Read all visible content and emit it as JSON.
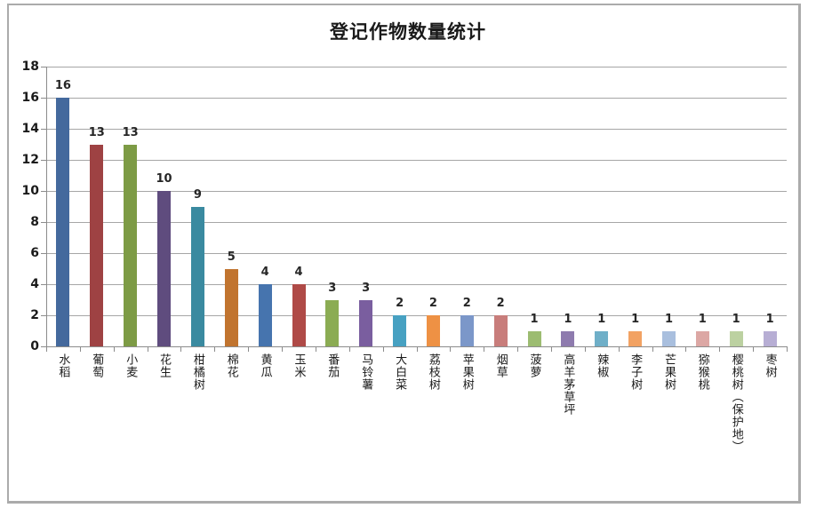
{
  "chart_data": {
    "type": "bar",
    "title": "登记作物数量统计",
    "categories": [
      "水稻",
      "葡萄",
      "小麦",
      "花生",
      "柑橘树",
      "棉花",
      "黄瓜",
      "玉米",
      "番茄",
      "马铃薯",
      "大白菜",
      "荔枝树",
      "苹果树",
      "烟草",
      "菠萝",
      "高羊茅草坪",
      "辣椒",
      "李子树",
      "芒果树",
      "猕猴桃",
      "樱桃树（保护地）",
      "枣树"
    ],
    "values": [
      16,
      13,
      13,
      10,
      9,
      5,
      4,
      4,
      3,
      3,
      2,
      2,
      2,
      2,
      1,
      1,
      1,
      1,
      1,
      1,
      1,
      1
    ],
    "bar_colors": [
      "#44699D",
      "#9E4243",
      "#7D9B45",
      "#5F4C7E",
      "#3A8AA0",
      "#C1742F",
      "#4674AE",
      "#AF4A47",
      "#8BAC53",
      "#7A5E9F",
      "#47A1C2",
      "#EE9144",
      "#7B97C9",
      "#C87D7B",
      "#9CBC71",
      "#8E7BAE",
      "#6FAFC8",
      "#F2A263",
      "#A9BFDE",
      "#DCA7A4",
      "#BCD1A1",
      "#B7AED4"
    ],
    "xlabel": "",
    "ylabel": "",
    "ylim": [
      0,
      18
    ],
    "yticks": [
      0,
      2,
      4,
      6,
      8,
      10,
      12,
      14,
      16,
      18
    ],
    "grid": "horizontal",
    "legend": "none",
    "value_labels": "outside-end"
  },
  "style": {
    "grid_color": "#A6A6A6",
    "axis_color": "#8C8C8C",
    "text_color": "#1A1A1A",
    "frame_border_color": "#ABABAB",
    "background": "#FFFFFF"
  }
}
